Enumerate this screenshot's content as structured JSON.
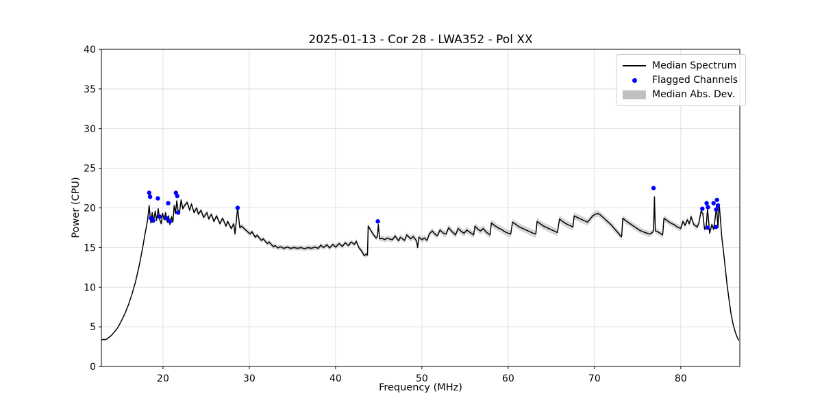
{
  "chart_data": {
    "type": "line",
    "title": "2025-01-13 - Cor 28 - LWA352 - Pol XX",
    "xlabel": "Frequency (MHz)",
    "ylabel": "Power (CPU)",
    "xlim": [
      12.86,
      86.84
    ],
    "ylim": [
      0,
      40
    ],
    "xticks": [
      20,
      30,
      40,
      50,
      60,
      70,
      80
    ],
    "yticks": [
      0,
      5,
      10,
      15,
      20,
      25,
      30,
      35,
      40
    ],
    "grid": true,
    "legend_position": "upper right",
    "style": {
      "grid_color": "#dedede",
      "background": "#ffffff",
      "spine_color": "#000000"
    },
    "series": [
      {
        "name": "Median Spectrum",
        "type": "line",
        "color": "#000000",
        "points": [
          [
            12.9,
            3.3
          ],
          [
            13.1,
            3.45
          ],
          [
            13.3,
            3.35
          ],
          [
            13.6,
            3.55
          ],
          [
            14.0,
            3.9
          ],
          [
            14.4,
            4.4
          ],
          [
            14.8,
            4.95
          ],
          [
            15.2,
            5.8
          ],
          [
            15.6,
            6.7
          ],
          [
            16.0,
            7.8
          ],
          [
            16.4,
            9.1
          ],
          [
            16.8,
            10.6
          ],
          [
            17.2,
            12.5
          ],
          [
            17.6,
            14.7
          ],
          [
            17.95,
            16.9
          ],
          [
            18.2,
            18.4
          ],
          [
            18.4,
            20.3
          ],
          [
            18.5,
            19.0
          ],
          [
            18.6,
            18.1
          ],
          [
            18.75,
            19.4
          ],
          [
            18.9,
            18.3
          ],
          [
            19.1,
            19.6
          ],
          [
            19.25,
            18.4
          ],
          [
            19.45,
            19.9
          ],
          [
            19.6,
            18.6
          ],
          [
            19.8,
            18.0
          ],
          [
            19.95,
            19.3
          ],
          [
            20.15,
            18.5
          ],
          [
            20.3,
            19.4
          ],
          [
            20.5,
            18.2
          ],
          [
            20.65,
            19.0
          ],
          [
            20.8,
            17.9
          ],
          [
            21.0,
            18.9
          ],
          [
            21.15,
            18.2
          ],
          [
            21.3,
            20.3
          ],
          [
            21.45,
            19.3
          ],
          [
            21.6,
            20.9
          ],
          [
            21.75,
            19.6
          ],
          [
            21.9,
            19.3
          ],
          [
            22.1,
            21.0
          ],
          [
            22.3,
            19.9
          ],
          [
            22.5,
            20.3
          ],
          [
            22.8,
            20.7
          ],
          [
            23.1,
            19.7
          ],
          [
            23.3,
            20.5
          ],
          [
            23.6,
            19.4
          ],
          [
            23.9,
            20.0
          ],
          [
            24.1,
            19.2
          ],
          [
            24.4,
            19.7
          ],
          [
            24.7,
            18.8
          ],
          [
            25.1,
            19.4
          ],
          [
            25.3,
            18.6
          ],
          [
            25.6,
            19.2
          ],
          [
            25.9,
            18.3
          ],
          [
            26.2,
            19.0
          ],
          [
            26.6,
            18.0
          ],
          [
            26.9,
            18.7
          ],
          [
            27.3,
            17.7
          ],
          [
            27.5,
            18.3
          ],
          [
            27.9,
            17.4
          ],
          [
            28.2,
            18.0
          ],
          [
            28.35,
            16.7
          ],
          [
            28.65,
            20.0
          ],
          [
            28.9,
            17.5
          ],
          [
            29.1,
            17.7
          ],
          [
            29.5,
            17.3
          ],
          [
            30.1,
            16.7
          ],
          [
            30.3,
            17.0
          ],
          [
            30.7,
            16.3
          ],
          [
            30.9,
            16.55
          ],
          [
            31.4,
            15.9
          ],
          [
            31.6,
            16.1
          ],
          [
            32.1,
            15.5
          ],
          [
            32.3,
            15.7
          ],
          [
            32.8,
            15.1
          ],
          [
            33.0,
            15.25
          ],
          [
            33.3,
            14.95
          ],
          [
            33.6,
            15.1
          ],
          [
            34.0,
            14.9
          ],
          [
            34.4,
            15.05
          ],
          [
            34.8,
            14.9
          ],
          [
            35.2,
            15.0
          ],
          [
            35.6,
            14.9
          ],
          [
            36.0,
            15.0
          ],
          [
            36.4,
            14.85
          ],
          [
            36.8,
            15.0
          ],
          [
            37.2,
            14.9
          ],
          [
            37.6,
            15.05
          ],
          [
            38.0,
            14.9
          ],
          [
            38.3,
            15.3
          ],
          [
            38.6,
            15.0
          ],
          [
            39.0,
            15.35
          ],
          [
            39.3,
            14.95
          ],
          [
            39.7,
            15.4
          ],
          [
            40.0,
            15.05
          ],
          [
            40.4,
            15.5
          ],
          [
            40.8,
            15.15
          ],
          [
            41.1,
            15.6
          ],
          [
            41.5,
            15.25
          ],
          [
            41.8,
            15.7
          ],
          [
            42.2,
            15.4
          ],
          [
            42.4,
            15.8
          ],
          [
            42.7,
            15.0
          ],
          [
            43.0,
            14.6
          ],
          [
            43.3,
            14.0
          ],
          [
            43.6,
            14.15
          ],
          [
            43.7,
            14.05
          ],
          [
            43.78,
            17.7
          ],
          [
            44.0,
            17.3
          ],
          [
            44.4,
            16.6
          ],
          [
            44.7,
            16.2
          ],
          [
            44.85,
            16.4
          ],
          [
            44.95,
            17.9
          ],
          [
            45.1,
            16.1
          ],
          [
            45.4,
            16.15
          ],
          [
            45.7,
            16.0
          ],
          [
            46.0,
            16.2
          ],
          [
            46.3,
            16.05
          ],
          [
            46.6,
            16.0
          ],
          [
            46.9,
            16.45
          ],
          [
            47.3,
            15.85
          ],
          [
            47.5,
            16.3
          ],
          [
            48.0,
            15.9
          ],
          [
            48.25,
            16.6
          ],
          [
            48.7,
            16.1
          ],
          [
            49.0,
            16.4
          ],
          [
            49.4,
            15.8
          ],
          [
            49.5,
            15.0
          ],
          [
            49.65,
            16.3
          ],
          [
            50.0,
            16.0
          ],
          [
            50.3,
            16.2
          ],
          [
            50.6,
            15.9
          ],
          [
            50.85,
            16.7
          ],
          [
            51.2,
            17.1
          ],
          [
            51.5,
            16.7
          ],
          [
            51.8,
            16.5
          ],
          [
            52.1,
            17.2
          ],
          [
            52.5,
            16.8
          ],
          [
            52.8,
            16.7
          ],
          [
            53.1,
            17.5
          ],
          [
            53.5,
            17.0
          ],
          [
            53.9,
            16.6
          ],
          [
            54.2,
            17.4
          ],
          [
            54.6,
            17.0
          ],
          [
            54.9,
            16.8
          ],
          [
            55.2,
            17.2
          ],
          [
            55.6,
            16.9
          ],
          [
            56.0,
            16.6
          ],
          [
            56.15,
            17.7
          ],
          [
            56.5,
            17.3
          ],
          [
            56.8,
            17.1
          ],
          [
            57.1,
            17.4
          ],
          [
            57.5,
            16.9
          ],
          [
            57.9,
            16.6
          ],
          [
            58.05,
            18.1
          ],
          [
            58.4,
            17.8
          ],
          [
            58.8,
            17.5
          ],
          [
            59.2,
            17.3
          ],
          [
            59.6,
            17.0
          ],
          [
            60.0,
            16.8
          ],
          [
            60.3,
            16.7
          ],
          [
            60.5,
            18.2
          ],
          [
            60.9,
            17.9
          ],
          [
            61.3,
            17.6
          ],
          [
            61.7,
            17.4
          ],
          [
            62.1,
            17.2
          ],
          [
            62.5,
            17.0
          ],
          [
            62.9,
            16.8
          ],
          [
            63.2,
            16.7
          ],
          [
            63.35,
            18.3
          ],
          [
            63.7,
            18.0
          ],
          [
            64.1,
            17.7
          ],
          [
            64.5,
            17.5
          ],
          [
            64.9,
            17.3
          ],
          [
            65.3,
            17.1
          ],
          [
            65.7,
            16.9
          ],
          [
            65.95,
            18.6
          ],
          [
            66.3,
            18.3
          ],
          [
            66.7,
            18.0
          ],
          [
            67.1,
            17.8
          ],
          [
            67.5,
            17.6
          ],
          [
            67.65,
            19.0
          ],
          [
            68.0,
            18.8
          ],
          [
            68.4,
            18.6
          ],
          [
            68.8,
            18.4
          ],
          [
            69.2,
            18.2
          ],
          [
            69.5,
            18.6
          ],
          [
            69.8,
            19.0
          ],
          [
            70.1,
            19.2
          ],
          [
            70.4,
            19.3
          ],
          [
            70.7,
            19.1
          ],
          [
            71.1,
            18.7
          ],
          [
            71.5,
            18.3
          ],
          [
            71.9,
            17.9
          ],
          [
            72.3,
            17.4
          ],
          [
            72.7,
            16.9
          ],
          [
            73.0,
            16.5
          ],
          [
            73.15,
            16.35
          ],
          [
            73.28,
            18.7
          ],
          [
            73.6,
            18.4
          ],
          [
            74.0,
            18.1
          ],
          [
            74.4,
            17.8
          ],
          [
            74.8,
            17.5
          ],
          [
            75.2,
            17.2
          ],
          [
            75.6,
            17.0
          ],
          [
            76.0,
            16.85
          ],
          [
            76.4,
            16.7
          ],
          [
            76.7,
            16.9
          ],
          [
            76.85,
            17.1
          ],
          [
            76.95,
            21.4
          ],
          [
            77.05,
            17.1
          ],
          [
            77.3,
            17.0
          ],
          [
            77.6,
            16.8
          ],
          [
            77.9,
            16.6
          ],
          [
            78.05,
            18.7
          ],
          [
            78.4,
            18.4
          ],
          [
            78.8,
            18.1
          ],
          [
            79.2,
            17.9
          ],
          [
            79.6,
            17.6
          ],
          [
            80.0,
            17.4
          ],
          [
            80.25,
            18.3
          ],
          [
            80.5,
            17.8
          ],
          [
            80.75,
            18.5
          ],
          [
            81.0,
            18.0
          ],
          [
            81.2,
            18.9
          ],
          [
            81.5,
            17.9
          ],
          [
            81.9,
            17.6
          ],
          [
            82.1,
            18.1
          ],
          [
            82.35,
            19.6
          ],
          [
            82.55,
            19.3
          ],
          [
            82.75,
            17.3
          ],
          [
            82.95,
            17.7
          ],
          [
            83.1,
            19.9
          ],
          [
            83.35,
            16.8
          ],
          [
            83.6,
            17.9
          ],
          [
            83.8,
            17.3
          ],
          [
            84.0,
            18.8
          ],
          [
            84.15,
            20.3
          ],
          [
            84.3,
            17.5
          ],
          [
            84.45,
            20.5
          ],
          [
            84.6,
            18.5
          ],
          [
            84.75,
            16.3
          ],
          [
            84.95,
            14.5
          ],
          [
            85.15,
            12.5
          ],
          [
            85.35,
            10.5
          ],
          [
            85.55,
            8.8
          ],
          [
            85.8,
            6.8
          ],
          [
            86.05,
            5.4
          ],
          [
            86.3,
            4.4
          ],
          [
            86.5,
            3.8
          ],
          [
            86.7,
            3.3
          ]
        ]
      },
      {
        "name": "Flagged Channels",
        "type": "scatter",
        "color": "#0000ff",
        "points": [
          [
            18.4,
            21.9
          ],
          [
            18.5,
            21.4
          ],
          [
            18.6,
            18.7
          ],
          [
            18.85,
            18.4
          ],
          [
            19.4,
            21.2
          ],
          [
            19.6,
            18.9
          ],
          [
            20.4,
            18.7
          ],
          [
            20.6,
            20.6
          ],
          [
            20.8,
            18.3
          ],
          [
            21.5,
            21.9
          ],
          [
            21.65,
            21.5
          ],
          [
            21.75,
            19.4
          ],
          [
            28.65,
            20.0
          ],
          [
            44.9,
            18.3
          ],
          [
            76.85,
            22.5
          ],
          [
            82.5,
            19.9
          ],
          [
            83.0,
            20.6
          ],
          [
            83.1,
            17.5
          ],
          [
            83.15,
            20.1
          ],
          [
            83.8,
            20.6
          ],
          [
            84.05,
            17.6
          ],
          [
            84.1,
            19.8
          ],
          [
            84.2,
            21.0
          ],
          [
            84.3,
            20.3
          ]
        ]
      },
      {
        "name": "Median Abs. Dev.",
        "type": "band",
        "color": "#c0c0c0",
        "around": "Median Spectrum",
        "halfwidth_points": [
          [
            12.9,
            0.07
          ],
          [
            15.0,
            0.09
          ],
          [
            17.0,
            0.15
          ],
          [
            18.4,
            0.28
          ],
          [
            22.0,
            0.3
          ],
          [
            26.0,
            0.3
          ],
          [
            29.0,
            0.3
          ],
          [
            33.0,
            0.3
          ],
          [
            38.0,
            0.32
          ],
          [
            43.0,
            0.3
          ],
          [
            44.5,
            0.33
          ],
          [
            48.0,
            0.36
          ],
          [
            52.0,
            0.38
          ],
          [
            56.0,
            0.42
          ],
          [
            60.0,
            0.43
          ],
          [
            64.0,
            0.45
          ],
          [
            68.0,
            0.45
          ],
          [
            71.0,
            0.42
          ],
          [
            74.0,
            0.4
          ],
          [
            77.0,
            0.38
          ],
          [
            80.0,
            0.38
          ],
          [
            83.0,
            0.36
          ],
          [
            84.5,
            0.3
          ],
          [
            85.5,
            0.15
          ],
          [
            86.7,
            0.07
          ]
        ]
      }
    ]
  }
}
